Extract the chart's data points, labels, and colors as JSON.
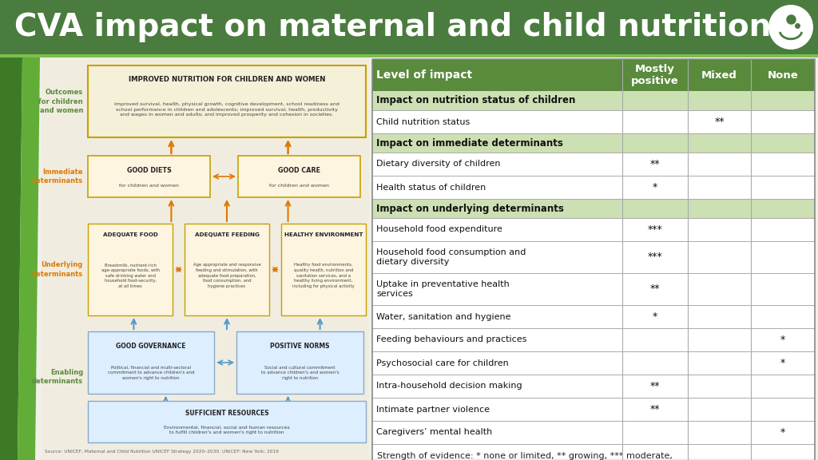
{
  "title": "CVA impact on maternal and child nutrition",
  "title_bg": "#4a7c3f",
  "title_color": "#ffffff",
  "bg_color": "#f0f0e8",
  "table_header_bg": "#5a8a3c",
  "table_header_color": "#ffffff",
  "table_section_bg": "#cce0b4",
  "table_border_color": "#888888",
  "columns": [
    "Level of impact",
    "Mostly\npositive",
    "Mixed",
    "None"
  ],
  "rows": [
    {
      "label": "Impact on nutrition status of children",
      "section": true,
      "mostly": "",
      "mixed": "",
      "none": ""
    },
    {
      "label": "Child nutrition status",
      "section": false,
      "mostly": "",
      "mixed": "**",
      "none": ""
    },
    {
      "label": "Impact on immediate determinants",
      "section": true,
      "mostly": "",
      "mixed": "",
      "none": ""
    },
    {
      "label": "Dietary diversity of children",
      "section": false,
      "mostly": "**",
      "mixed": "",
      "none": ""
    },
    {
      "label": "Health status of children",
      "section": false,
      "mostly": "*",
      "mixed": "",
      "none": ""
    },
    {
      "label": "Impact on underlying determinants",
      "section": true,
      "mostly": "",
      "mixed": "",
      "none": ""
    },
    {
      "label": "Household food expenditure",
      "section": false,
      "mostly": "***",
      "mixed": "",
      "none": ""
    },
    {
      "label": "Household food consumption and\ndietary diversity",
      "section": false,
      "mostly": "***",
      "mixed": "",
      "none": ""
    },
    {
      "label": "Uptake in preventative health\nservices",
      "section": false,
      "mostly": "**",
      "mixed": "",
      "none": ""
    },
    {
      "label": "Water, sanitation and hygiene",
      "section": false,
      "mostly": "*",
      "mixed": "",
      "none": ""
    },
    {
      "label": "Feeding behaviours and practices",
      "section": false,
      "mostly": "",
      "mixed": "",
      "none": "*"
    },
    {
      "label": "Psychosocial care for children",
      "section": false,
      "mostly": "",
      "mixed": "",
      "none": "*"
    },
    {
      "label": "Intra-household decision making",
      "section": false,
      "mostly": "**",
      "mixed": "",
      "none": ""
    },
    {
      "label": "Intimate partner violence",
      "section": false,
      "mostly": "**",
      "mixed": "",
      "none": ""
    },
    {
      "label": "Caregivers’ mental health",
      "section": false,
      "mostly": "",
      "mixed": "",
      "none": "*"
    }
  ],
  "footnote": "Strength of evidence: * none or limited, ** growing, *** moderate,\n**** strong",
  "source_text": "Source: UNICEF, Maternal and Child Nutrition UNICEF Strategy 2020–2030. UNICEF: New York; 2019",
  "outcome_bg": "#f5f0d8",
  "outcome_border": "#c8a000",
  "immediate_bg": "#fdf5e0",
  "underlying_bg": "#fdf5e0",
  "enabling_bg": "#ddeeff",
  "enabling_border": "#88aacc",
  "label_green": "#5a8a3c",
  "label_orange": "#e07800",
  "arrow_orange": "#e07800",
  "arrow_blue": "#5599cc",
  "left_panel_bg": "#f0ede0"
}
